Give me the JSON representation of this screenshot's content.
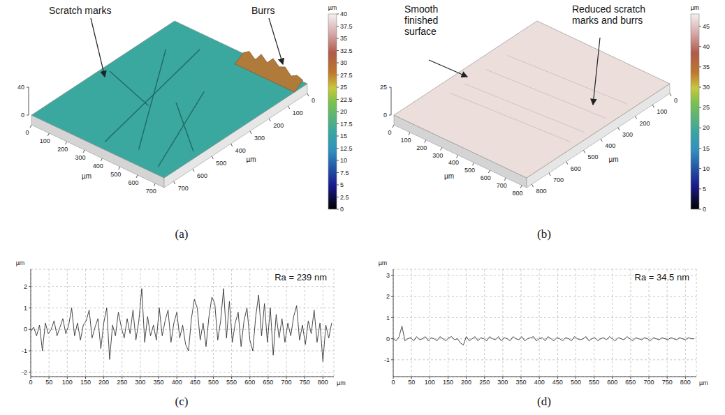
{
  "chart_data": [
    {
      "type": "surface",
      "panel": "(a)",
      "color": "#3ba89f",
      "xlim": [
        0,
        750
      ],
      "xticks": [
        0,
        100,
        200,
        300,
        400,
        500,
        600,
        700
      ],
      "ylim": [
        0,
        750
      ],
      "yticks": [
        0,
        100,
        200,
        300,
        400,
        500,
        600,
        700
      ],
      "x_label": "µm",
      "y_label": "µm",
      "zlim": [
        0,
        40
      ],
      "zticks": [
        0,
        40
      ],
      "colorbar": {
        "lim": [
          0,
          40
        ],
        "ticks": [
          0,
          2.5,
          5,
          7.5,
          10,
          12.5,
          15,
          17.5,
          20,
          22.5,
          25,
          27.5,
          30,
          32.5,
          35,
          37.5,
          40
        ],
        "label": "µm"
      },
      "annotations": [
        "Scratch marks",
        "Burrs"
      ]
    },
    {
      "type": "surface",
      "panel": "(b)",
      "color": "#ebdedb",
      "xlim": [
        0,
        830
      ],
      "xticks": [
        0,
        100,
        200,
        300,
        400,
        500,
        600,
        700,
        800
      ],
      "ylim": [
        0,
        830
      ],
      "yticks": [
        0,
        100,
        200,
        300,
        400,
        500,
        600,
        700,
        800
      ],
      "x_label": "µm",
      "y_label": "µm",
      "zlim": [
        0,
        25
      ],
      "zticks": [
        0,
        25
      ],
      "colorbar": {
        "lim": [
          0,
          48
        ],
        "ticks": [
          0,
          5,
          10,
          15,
          20,
          25,
          30,
          35,
          40,
          45
        ],
        "label": "µm"
      },
      "annotations": [
        "Smooth finished surface",
        "Reduced scratch marks and burrs"
      ]
    },
    {
      "type": "line",
      "panel": "(c)",
      "color": "#333333",
      "grid": true,
      "xlim": [
        0,
        830
      ],
      "xticks": [
        0,
        50,
        100,
        150,
        200,
        250,
        300,
        350,
        400,
        450,
        500,
        550,
        600,
        650,
        700,
        750,
        800
      ],
      "ylim": [
        -2.2,
        2.8
      ],
      "yticks": [
        -2,
        -1,
        0,
        1,
        2
      ],
      "x_label": "µm",
      "y_label": "µm",
      "annotations": [
        "Ra = 239 nm"
      ],
      "x": [
        0,
        8,
        16,
        24,
        32,
        40,
        48,
        56,
        64,
        72,
        80,
        88,
        96,
        104,
        112,
        120,
        128,
        136,
        144,
        152,
        160,
        168,
        176,
        184,
        192,
        200,
        208,
        216,
        224,
        232,
        240,
        248,
        256,
        264,
        272,
        280,
        288,
        296,
        304,
        312,
        320,
        328,
        336,
        344,
        352,
        360,
        368,
        376,
        384,
        392,
        400,
        408,
        416,
        424,
        432,
        440,
        448,
        456,
        464,
        472,
        480,
        488,
        496,
        504,
        512,
        520,
        528,
        536,
        544,
        552,
        560,
        568,
        576,
        584,
        592,
        600,
        608,
        616,
        624,
        632,
        640,
        648,
        656,
        664,
        672,
        680,
        688,
        696,
        704,
        712,
        720,
        728,
        736,
        744,
        752,
        760,
        768,
        776,
        784,
        792,
        800,
        808,
        816,
        824
      ],
      "values": [
        -0.1,
        0.1,
        -0.3,
        0.2,
        -1.0,
        0.3,
        -0.2,
        0.0,
        0.4,
        -0.3,
        0.1,
        0.5,
        -0.2,
        0.2,
        1.0,
        -0.3,
        0.3,
        -0.5,
        0.2,
        0.4,
        0.9,
        -0.4,
        0.1,
        0.5,
        -0.9,
        0.3,
        1.0,
        -1.4,
        0.2,
        -0.3,
        0.8,
        0.1,
        -0.4,
        0.5,
        -0.2,
        0.9,
        -0.5,
        0.4,
        1.9,
        -0.6,
        0.6,
        -0.3,
        0.2,
        -0.5,
        1.0,
        -0.3,
        0.4,
        0.9,
        -0.6,
        0.3,
        0.8,
        -0.4,
        0.2,
        -0.7,
        -1.0,
        0.5,
        1.4,
        1.0,
        -0.5,
        0.3,
        -0.8,
        0.6,
        1.5,
        1.2,
        -0.5,
        0.4,
        1.9,
        -0.4,
        1.3,
        -0.6,
        0.3,
        0.8,
        -0.8,
        0.4,
        1.0,
        -0.5,
        -1.0,
        0.6,
        1.6,
        -0.3,
        1.2,
        -0.6,
        1.0,
        -1.2,
        0.7,
        -0.4,
        0.5,
        -0.6,
        0.3,
        -0.3,
        0.6,
        1.1,
        -0.5,
        0.2,
        -0.7,
        0.4,
        -0.2,
        0.9,
        -0.6,
        0.3,
        -1.5,
        0.2,
        -0.4,
        0.3
      ]
    },
    {
      "type": "line",
      "panel": "(d)",
      "color": "#333333",
      "grid": true,
      "xlim": [
        0,
        830
      ],
      "xticks": [
        0,
        50,
        100,
        150,
        200,
        250,
        300,
        350,
        400,
        450,
        500,
        550,
        600,
        650,
        700,
        750,
        800
      ],
      "ylim": [
        -1.8,
        3.3
      ],
      "yticks": [
        -1,
        0,
        1,
        2,
        3
      ],
      "x_label": "µm",
      "y_label": "µm",
      "annotations": [
        "Ra = 34.5 nm"
      ],
      "x": [
        0,
        8,
        16,
        24,
        32,
        40,
        48,
        56,
        64,
        72,
        80,
        88,
        96,
        104,
        112,
        120,
        128,
        136,
        144,
        152,
        160,
        168,
        176,
        184,
        192,
        200,
        208,
        216,
        224,
        232,
        240,
        248,
        256,
        264,
        272,
        280,
        288,
        296,
        304,
        312,
        320,
        328,
        336,
        344,
        352,
        360,
        368,
        376,
        384,
        392,
        400,
        408,
        416,
        424,
        432,
        440,
        448,
        456,
        464,
        472,
        480,
        488,
        496,
        504,
        512,
        520,
        528,
        536,
        544,
        552,
        560,
        568,
        576,
        584,
        592,
        600,
        608,
        616,
        624,
        632,
        640,
        648,
        656,
        664,
        672,
        680,
        688,
        696,
        704,
        712,
        720,
        728,
        736,
        744,
        752,
        760,
        768,
        776,
        784,
        792,
        800,
        808,
        816,
        824
      ],
      "values": [
        0.0,
        -0.1,
        0.1,
        0.6,
        -0.1,
        0.0,
        0.05,
        -0.1,
        0.1,
        -0.05,
        0.0,
        0.1,
        -0.1,
        0.05,
        0.0,
        -0.1,
        0.1,
        0.0,
        -0.1,
        0.05,
        0.1,
        -0.05,
        0.0,
        -0.2,
        -0.3,
        0.1,
        -0.1,
        0.0,
        0.1,
        -0.1,
        0.05,
        0.0,
        -0.1,
        0.1,
        0.0,
        -0.05,
        0.1,
        -0.1,
        0.05,
        0.0,
        -0.1,
        0.1,
        0.0,
        -0.05,
        0.1,
        -0.1,
        0.0,
        0.05,
        0.1,
        -0.1,
        0.0,
        0.05,
        -0.1,
        0.1,
        0.0,
        -0.1,
        0.05,
        0.0,
        -0.1,
        0.05,
        0.0,
        -0.1,
        0.1,
        0.0,
        -0.05,
        0.0,
        0.1,
        -0.1,
        0.0,
        0.05,
        -0.1,
        0.0,
        0.05,
        -0.05,
        0.1,
        0.0,
        -0.1,
        0.05,
        0.0,
        -0.05,
        0.1,
        0.0,
        -0.1,
        0.05,
        0.0,
        -0.05,
        0.05,
        0.0,
        -0.1,
        0.05,
        0.0,
        -0.05,
        0.05,
        0.0,
        -0.05,
        0.05,
        0.0,
        -0.05,
        0.05,
        0.0,
        -0.05,
        0.05,
        0.0,
        0.0
      ]
    }
  ]
}
